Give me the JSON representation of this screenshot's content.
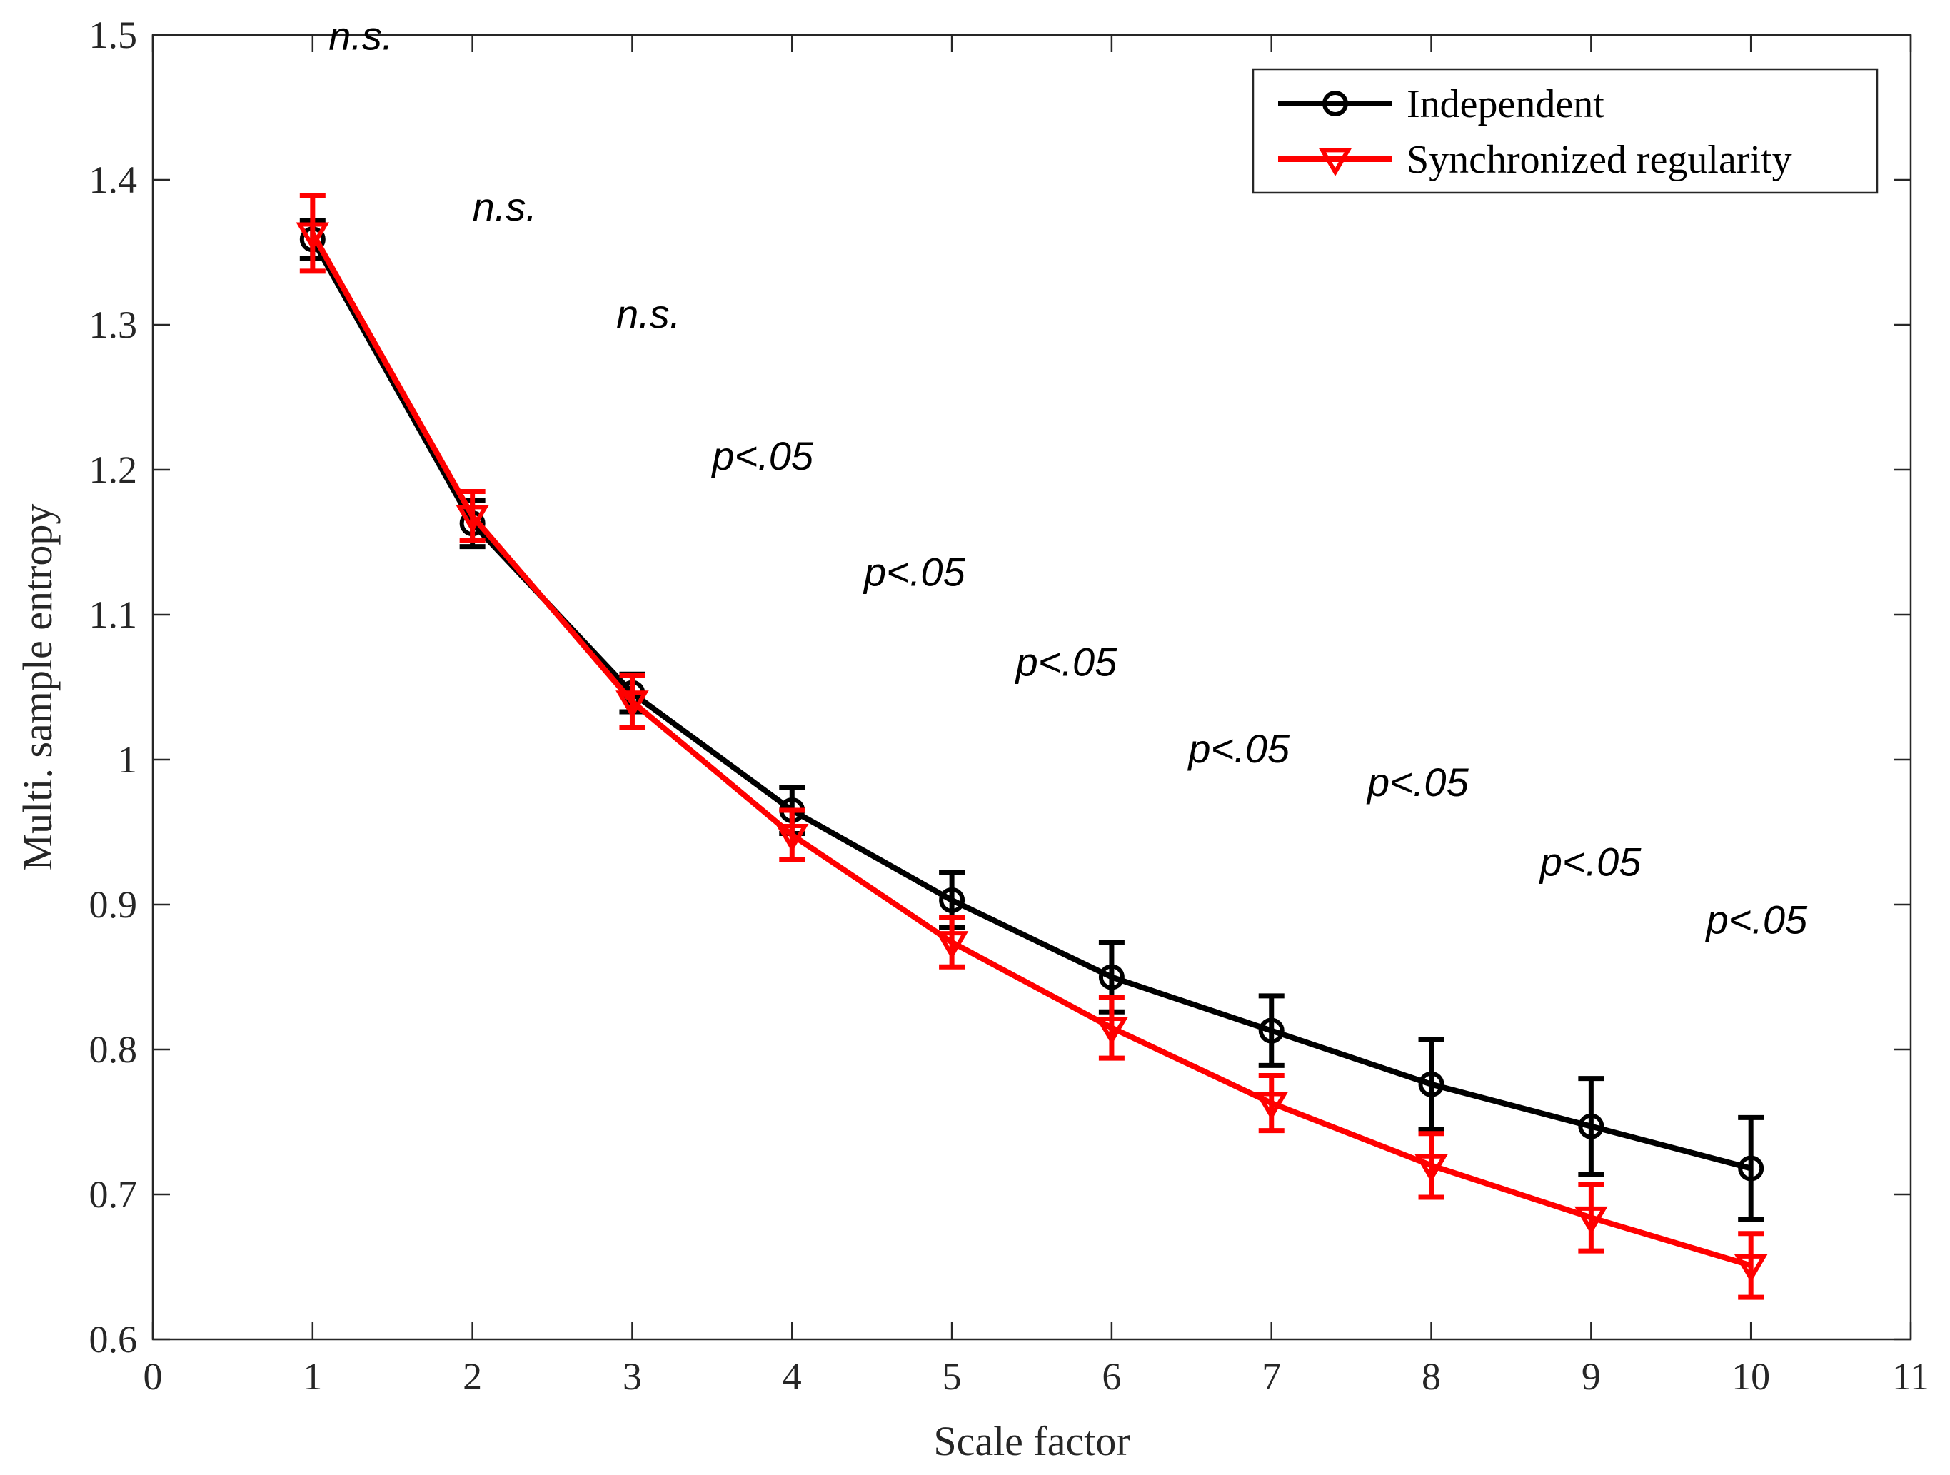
{
  "chart_data": {
    "type": "line",
    "title": "",
    "xlabel": "Scale factor",
    "ylabel": "Multi. sample entropy",
    "xlim": [
      0,
      11
    ],
    "ylim": [
      0.6,
      1.5
    ],
    "xticks": [
      0,
      1,
      2,
      3,
      4,
      5,
      6,
      7,
      8,
      9,
      10,
      11
    ],
    "yticks": [
      0.6,
      0.7,
      0.8,
      0.9,
      1.0,
      1.1,
      1.2,
      1.3,
      1.4,
      1.5
    ],
    "ytick_labels": [
      "0.6",
      "0.7",
      "0.8",
      "0.9",
      "1",
      "1.1",
      "1.2",
      "1.3",
      "1.4",
      "1.5"
    ],
    "grid": false,
    "legend_position": "top-right",
    "x": [
      1,
      2,
      3,
      4,
      5,
      6,
      7,
      8,
      9,
      10
    ],
    "series": [
      {
        "name": "Independent",
        "color": "#000000",
        "marker": "circle",
        "values": [
          1.359,
          1.163,
          1.046,
          0.965,
          0.903,
          0.85,
          0.813,
          0.776,
          0.747,
          0.718
        ],
        "errors": [
          0.013,
          0.016,
          0.013,
          0.016,
          0.019,
          0.024,
          0.024,
          0.031,
          0.033,
          0.035
        ]
      },
      {
        "name": "Synchronized regularity",
        "color": "#ff0000",
        "marker": "triangle-down",
        "values": [
          1.363,
          1.168,
          1.04,
          0.948,
          0.874,
          0.815,
          0.763,
          0.72,
          0.684,
          0.651
        ],
        "errors": [
          0.026,
          0.017,
          0.018,
          0.017,
          0.017,
          0.021,
          0.019,
          0.022,
          0.023,
          0.022
        ]
      }
    ],
    "annotations": [
      {
        "text": "n.s.",
        "x": 1.1,
        "y": 1.49
      },
      {
        "text": "n.s.",
        "x": 2.0,
        "y": 1.372
      },
      {
        "text": "n.s.",
        "x": 2.9,
        "y": 1.298
      },
      {
        "text": "p<.05",
        "x": 3.5,
        "y": 1.2
      },
      {
        "text": "p<.05",
        "x": 4.45,
        "y": 1.12
      },
      {
        "text": "p<.05",
        "x": 5.4,
        "y": 1.058
      },
      {
        "text": "p<.05",
        "x": 6.48,
        "y": 0.998
      },
      {
        "text": "p<.05",
        "x": 7.6,
        "y": 0.975
      },
      {
        "text": "p<.05",
        "x": 8.68,
        "y": 0.92
      },
      {
        "text": "p<.05",
        "x": 9.72,
        "y": 0.88
      }
    ]
  }
}
